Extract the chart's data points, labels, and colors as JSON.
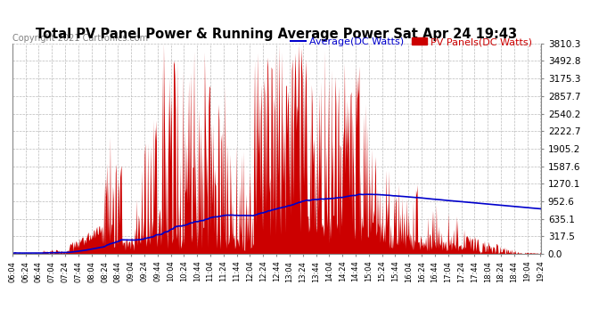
{
  "title": "Total PV Panel Power & Running Average Power Sat Apr 24 19:43",
  "copyright": "Copyright 2021 Cartronics.com",
  "legend_avg": "Average(DC Watts)",
  "legend_pv": "PV Panels(DC Watts)",
  "ymax": 3810.3,
  "yticks": [
    0.0,
    317.5,
    635.1,
    952.6,
    1270.1,
    1587.6,
    1905.2,
    2222.7,
    2540.2,
    2857.7,
    3175.3,
    3492.8,
    3810.3
  ],
  "bg_color": "#ffffff",
  "plot_bg_color": "#ffffff",
  "grid_color": "#bbbbbb",
  "pv_color": "#cc0000",
  "avg_color": "#0000cc",
  "x_start_hour": 6,
  "x_start_min": 4,
  "x_end_hour": 19,
  "x_end_min": 25,
  "x_tick_interval_min": 20,
  "title_fontsize": 10.5,
  "copyright_fontsize": 7,
  "legend_fontsize": 8,
  "ytick_fontsize": 7.5,
  "xtick_fontsize": 6.0
}
